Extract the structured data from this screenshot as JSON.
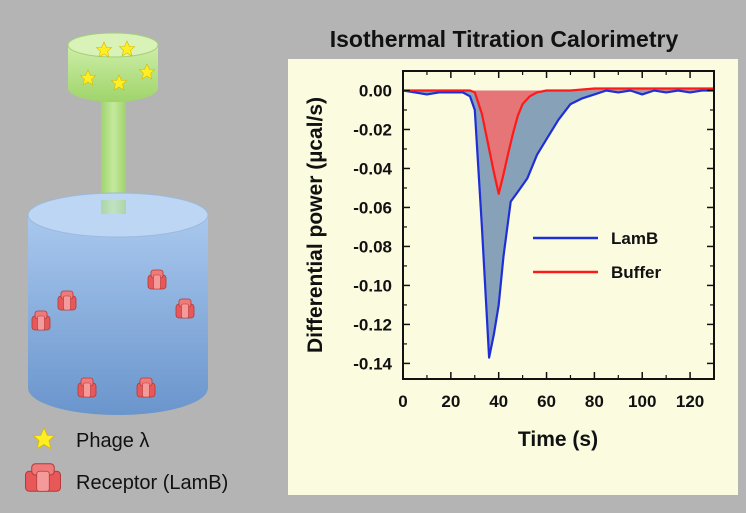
{
  "figure": {
    "title": "Isothermal Titration Calorimetry",
    "key": [
      {
        "symbol": "star-icon",
        "label": "Phage λ"
      },
      {
        "symbol": "receptor-icon",
        "label": "Receptor (LamB)"
      }
    ]
  },
  "colors": {
    "background": "#b4b4b4",
    "plot_panel": "#fbfbe0",
    "lamb_line": "#1f2fd6",
    "lamb_fill": "#7f9cb5",
    "buffer_line": "#ff1a1a",
    "buffer_fill": "#f07070",
    "phage_star": "#ffee22",
    "receptor": "#e85858",
    "syringe": "#b6e08c",
    "cell": "#86aee0"
  },
  "chart_data": {
    "type": "line",
    "xlabel": "Time (s)",
    "ylabel": "Differential power (µcal/s)",
    "xlim": [
      0,
      130
    ],
    "ylim": [
      -0.148,
      0.01
    ],
    "xticks": [
      0,
      20,
      40,
      60,
      80,
      100,
      120
    ],
    "xtick_labels": [
      "0",
      "20",
      "40",
      "60",
      "80",
      "100",
      "120"
    ],
    "yticks": [
      0.0,
      -0.02,
      -0.04,
      -0.06,
      -0.08,
      -0.1,
      -0.12,
      -0.14
    ],
    "ytick_labels": [
      "0.00",
      "-0.02",
      "-0.04",
      "-0.06",
      "-0.08",
      "-0.10",
      "-0.12",
      "-0.14"
    ],
    "legend_position": "center-right",
    "series": [
      {
        "name": "LamB",
        "color": "#1f2fd6",
        "fill": "#7f9cb5",
        "x": [
          0,
          5,
          10,
          15,
          20,
          25,
          28,
          30,
          33,
          36,
          38,
          40,
          42,
          45,
          48,
          52,
          56,
          60,
          65,
          70,
          75,
          80,
          85,
          90,
          95,
          100,
          105,
          110,
          115,
          120,
          125,
          130
        ],
        "y": [
          0.0,
          -0.001,
          -0.002,
          -0.001,
          -0.001,
          -0.001,
          -0.003,
          -0.01,
          -0.07,
          -0.137,
          -0.125,
          -0.11,
          -0.085,
          -0.057,
          -0.052,
          -0.045,
          -0.033,
          -0.025,
          -0.015,
          -0.007,
          -0.004,
          -0.002,
          0.0,
          -0.001,
          0.0,
          -0.002,
          0.0,
          -0.001,
          0.0,
          -0.001,
          0.0,
          0.0
        ]
      },
      {
        "name": "Buffer",
        "color": "#ff1a1a",
        "fill": "#f07070",
        "x": [
          0,
          10,
          20,
          25,
          28,
          30,
          33,
          36,
          38,
          40,
          42,
          44,
          46,
          48,
          50,
          53,
          56,
          60,
          70,
          80,
          90,
          100,
          110,
          120,
          130
        ],
        "y": [
          0.0,
          0.0,
          0.0,
          0.0,
          0.0,
          -0.001,
          -0.012,
          -0.03,
          -0.042,
          -0.053,
          -0.043,
          -0.032,
          -0.022,
          -0.013,
          -0.007,
          -0.003,
          -0.001,
          0.0,
          0.0,
          0.001,
          0.001,
          0.001,
          0.001,
          0.001,
          0.001
        ]
      }
    ]
  }
}
